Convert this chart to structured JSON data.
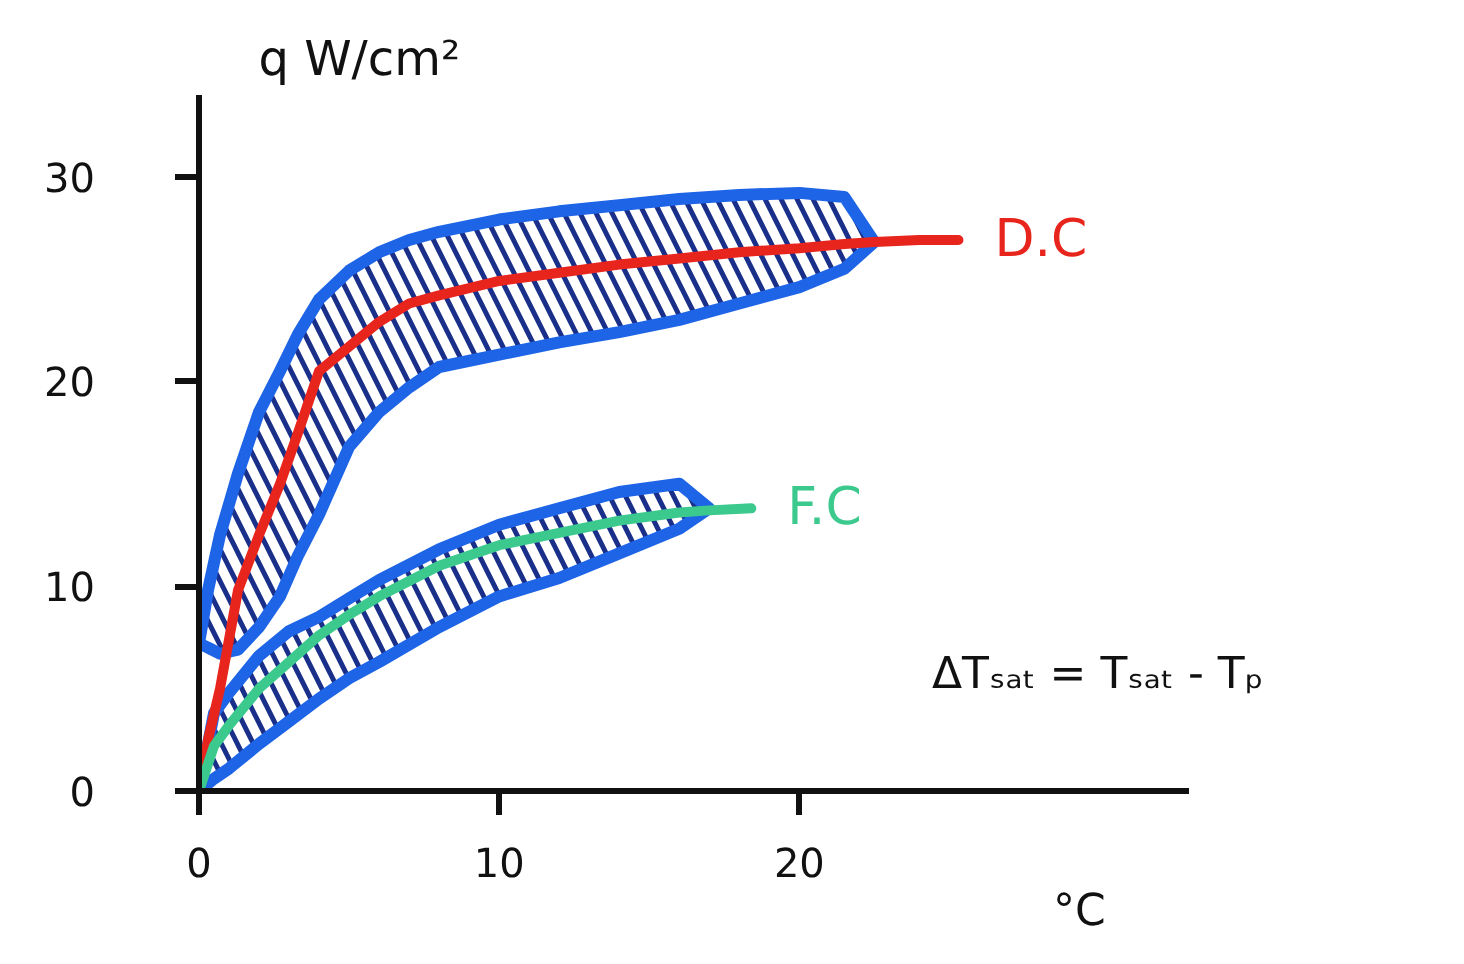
{
  "chart_data": {
    "type": "line",
    "xlabel": "°C",
    "ylabel": "q W/cm²",
    "annotations": [
      "ΔTₛₐₜ = Tₛₐₜ - Tₚ"
    ],
    "xlim": [
      0,
      33
    ],
    "ylim": [
      0,
      34
    ],
    "xticks": [
      0,
      10,
      20
    ],
    "yticks": [
      0,
      10,
      20,
      30
    ],
    "series": [
      {
        "name": "D.C",
        "color": "#e8251d",
        "x": [
          0,
          0.3,
          0.7,
          1.3,
          2,
          2.7,
          3.3,
          4,
          5,
          6,
          7,
          8,
          10,
          12,
          14,
          16,
          18,
          20,
          21.5,
          22.5,
          24,
          25.3
        ],
        "values": [
          0,
          2.5,
          5,
          9.8,
          12.5,
          15,
          17.5,
          20.5,
          21.7,
          22.9,
          23.8,
          24.2,
          24.9,
          25.3,
          25.7,
          26,
          26.3,
          26.5,
          26.7,
          26.8,
          26.9,
          26.9
        ],
        "upper": [
          7.2,
          9.8,
          12.5,
          15.5,
          18.5,
          20.5,
          22.3,
          24,
          25.4,
          26.3,
          26.9,
          27.3,
          27.9,
          28.3,
          28.6,
          28.9,
          29.1,
          29.2,
          29,
          26.8,
          null,
          null
        ],
        "lower": [
          7.2,
          7,
          6.7,
          6.9,
          8,
          9.5,
          11.5,
          13.5,
          16.8,
          18.5,
          19.7,
          20.7,
          21.3,
          21.9,
          22.4,
          23,
          23.8,
          24.6,
          25.5,
          26.8,
          null,
          null
        ]
      },
      {
        "name": "F.C",
        "color": "#3cc98e",
        "x": [
          0,
          0.5,
          1,
          2,
          3,
          4,
          5,
          6,
          8,
          10,
          12,
          14,
          16,
          17,
          18.4
        ],
        "values": [
          0,
          2.2,
          3.2,
          5,
          6.3,
          7.6,
          8.6,
          9.5,
          11,
          12,
          12.6,
          13.2,
          13.6,
          13.7,
          13.8
        ],
        "upper": [
          0,
          3.8,
          4.8,
          6.6,
          7.8,
          8.5,
          9.4,
          10.3,
          11.8,
          13,
          13.8,
          14.6,
          15,
          13.8,
          null
        ],
        "lower": [
          0,
          0.6,
          1.1,
          2.3,
          3.4,
          4.5,
          5.5,
          6.3,
          8,
          9.5,
          10.4,
          11.6,
          12.8,
          13.8,
          null
        ]
      }
    ]
  }
}
